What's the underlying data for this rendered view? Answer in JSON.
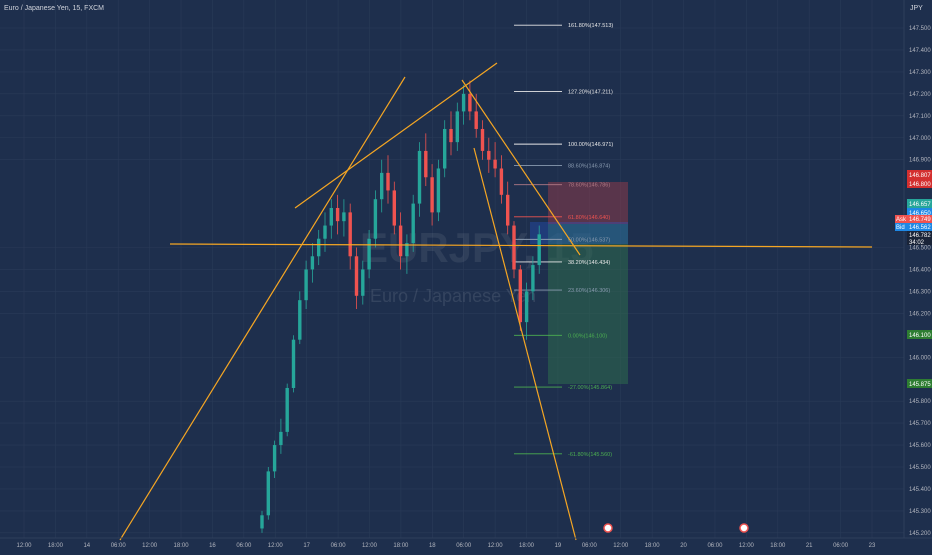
{
  "header": {
    "symbol_desc": "Euro / Japanese Yen, 15, FXCM",
    "currency": "JPY"
  },
  "watermark": {
    "symbol": "EURJPY, 15",
    "desc": "Euro / Japanese Yen"
  },
  "colors": {
    "background": "#1e2f4d",
    "up_candle": "#26a69a",
    "down_candle": "#ef5350",
    "trendline": "#f5a623",
    "fib_white": "#e8e8e8",
    "fib_red": "#ef5350",
    "fib_green": "#4caf50",
    "stop_zone": "#8a3a4a",
    "target_zone": "#2e6b4f"
  },
  "chart_data": {
    "type": "candlestick",
    "symbol": "EURJPY",
    "interval": "15",
    "source": "FXCM",
    "y_axis": {
      "currency": "JPY",
      "range": [
        145.2,
        147.6
      ],
      "ticks": [
        "147.500",
        "147.400",
        "147.300",
        "147.200",
        "147.100",
        "147.000",
        "146.900",
        "146.500",
        "146.400",
        "146.300",
        "146.200",
        "146.000",
        "145.800",
        "145.700",
        "145.600",
        "145.500",
        "145.400",
        "145.300",
        "145.200"
      ]
    },
    "x_axis": {
      "ticks": [
        "12:00",
        "18:00",
        "14",
        "06:00",
        "12:00",
        "18:00",
        "16",
        "06:00",
        "12:00",
        "17",
        "06:00",
        "12:00",
        "18:00",
        "18",
        "06:00",
        "12:00",
        "18:00",
        "19",
        "06:00",
        "12:00",
        "18:00",
        "20",
        "06:00",
        "12:00",
        "18:00",
        "21",
        "06:00",
        "23"
      ]
    },
    "price_labels": [
      {
        "text": "146.807",
        "kind": "red"
      },
      {
        "text": "146.800",
        "kind": "red"
      },
      {
        "text": "146.657",
        "kind": "teal"
      },
      {
        "text": "146.650",
        "kind": "teal"
      },
      {
        "text": "Ask",
        "kind": "ask-tag"
      },
      {
        "text": "146.749",
        "kind": "ask"
      },
      {
        "text": "Bid",
        "kind": "bid-tag"
      },
      {
        "text": "146.562",
        "kind": "bid"
      },
      {
        "text": "146.782",
        "kind": "dark"
      },
      {
        "text": "34:02",
        "kind": "dark"
      },
      {
        "text": "146.100",
        "kind": "green"
      },
      {
        "text": "145.875",
        "kind": "green"
      }
    ],
    "fibonacci": [
      {
        "label": "161.80%(147.513)",
        "price": 147.513,
        "color": "white"
      },
      {
        "label": "127.20%(147.211)",
        "price": 147.211,
        "color": "white"
      },
      {
        "label": "100.00%(146.971)",
        "price": 146.971,
        "color": "white"
      },
      {
        "label": "88.60%(146.874)",
        "price": 146.874,
        "color": "gray"
      },
      {
        "label": "78.60%(146.786)",
        "price": 146.786,
        "color": "gray-red"
      },
      {
        "label": "61.80%(146.640)",
        "price": 146.64,
        "color": "red"
      },
      {
        "label": "50.00%(146.537)",
        "price": 146.537,
        "color": "gray"
      },
      {
        "label": "38.20%(146.434)",
        "price": 146.434,
        "color": "white"
      },
      {
        "label": "23.60%(146.306)",
        "price": 146.306,
        "color": "gray"
      },
      {
        "label": "0.00%(146.100)",
        "price": 146.1,
        "color": "green"
      },
      {
        "label": "-27.00%(145.864)",
        "price": 145.864,
        "color": "green"
      },
      {
        "label": "-61.80%(145.560)",
        "price": 145.56,
        "color": "green"
      }
    ],
    "candles": [
      {
        "o": 145.22,
        "h": 145.3,
        "l": 145.2,
        "c": 145.28
      },
      {
        "o": 145.28,
        "h": 145.5,
        "l": 145.26,
        "c": 145.48
      },
      {
        "o": 145.48,
        "h": 145.62,
        "l": 145.45,
        "c": 145.6
      },
      {
        "o": 145.6,
        "h": 145.72,
        "l": 145.56,
        "c": 145.66
      },
      {
        "o": 145.66,
        "h": 145.88,
        "l": 145.64,
        "c": 145.86
      },
      {
        "o": 145.86,
        "h": 146.1,
        "l": 145.84,
        "c": 146.08
      },
      {
        "o": 146.08,
        "h": 146.3,
        "l": 146.06,
        "c": 146.26
      },
      {
        "o": 146.26,
        "h": 146.44,
        "l": 146.22,
        "c": 146.4
      },
      {
        "o": 146.4,
        "h": 146.52,
        "l": 146.34,
        "c": 146.46
      },
      {
        "o": 146.46,
        "h": 146.58,
        "l": 146.42,
        "c": 146.54
      },
      {
        "o": 146.54,
        "h": 146.66,
        "l": 146.48,
        "c": 146.6
      },
      {
        "o": 146.6,
        "h": 146.72,
        "l": 146.54,
        "c": 146.68
      },
      {
        "o": 146.68,
        "h": 146.74,
        "l": 146.56,
        "c": 146.62
      },
      {
        "o": 146.62,
        "h": 146.72,
        "l": 146.55,
        "c": 146.66
      },
      {
        "o": 146.66,
        "h": 146.7,
        "l": 146.4,
        "c": 146.46
      },
      {
        "o": 146.46,
        "h": 146.5,
        "l": 146.22,
        "c": 146.28
      },
      {
        "o": 146.28,
        "h": 146.44,
        "l": 146.24,
        "c": 146.4
      },
      {
        "o": 146.4,
        "h": 146.58,
        "l": 146.36,
        "c": 146.54
      },
      {
        "o": 146.54,
        "h": 146.76,
        "l": 146.5,
        "c": 146.72
      },
      {
        "o": 146.72,
        "h": 146.9,
        "l": 146.66,
        "c": 146.84
      },
      {
        "o": 146.84,
        "h": 146.92,
        "l": 146.7,
        "c": 146.76
      },
      {
        "o": 146.76,
        "h": 146.8,
        "l": 146.56,
        "c": 146.6
      },
      {
        "o": 146.6,
        "h": 146.66,
        "l": 146.4,
        "c": 146.46
      },
      {
        "o": 146.46,
        "h": 146.56,
        "l": 146.38,
        "c": 146.52
      },
      {
        "o": 146.52,
        "h": 146.74,
        "l": 146.48,
        "c": 146.7
      },
      {
        "o": 146.7,
        "h": 146.98,
        "l": 146.64,
        "c": 146.94
      },
      {
        "o": 146.94,
        "h": 147.02,
        "l": 146.78,
        "c": 146.82
      },
      {
        "o": 146.82,
        "h": 146.88,
        "l": 146.6,
        "c": 146.66
      },
      {
        "o": 146.66,
        "h": 146.9,
        "l": 146.62,
        "c": 146.86
      },
      {
        "o": 146.86,
        "h": 147.08,
        "l": 146.82,
        "c": 147.04
      },
      {
        "o": 147.04,
        "h": 147.12,
        "l": 146.92,
        "c": 146.98
      },
      {
        "o": 146.98,
        "h": 147.16,
        "l": 146.94,
        "c": 147.12
      },
      {
        "o": 147.12,
        "h": 147.24,
        "l": 147.06,
        "c": 147.2
      },
      {
        "o": 147.2,
        "h": 147.26,
        "l": 147.08,
        "c": 147.12
      },
      {
        "o": 147.12,
        "h": 147.2,
        "l": 147.0,
        "c": 147.04
      },
      {
        "o": 147.04,
        "h": 147.08,
        "l": 146.9,
        "c": 146.94
      },
      {
        "o": 146.94,
        "h": 147.0,
        "l": 146.84,
        "c": 146.9
      },
      {
        "o": 146.9,
        "h": 146.98,
        "l": 146.82,
        "c": 146.86
      },
      {
        "o": 146.86,
        "h": 146.92,
        "l": 146.7,
        "c": 146.74
      },
      {
        "o": 146.74,
        "h": 146.8,
        "l": 146.56,
        "c": 146.6
      },
      {
        "o": 146.6,
        "h": 146.62,
        "l": 146.36,
        "c": 146.4
      },
      {
        "o": 146.4,
        "h": 146.42,
        "l": 146.12,
        "c": 146.16
      },
      {
        "o": 146.16,
        "h": 146.34,
        "l": 146.08,
        "c": 146.3
      },
      {
        "o": 146.3,
        "h": 146.46,
        "l": 146.26,
        "c": 146.42
      },
      {
        "o": 146.42,
        "h": 146.6,
        "l": 146.38,
        "c": 146.56
      }
    ]
  }
}
